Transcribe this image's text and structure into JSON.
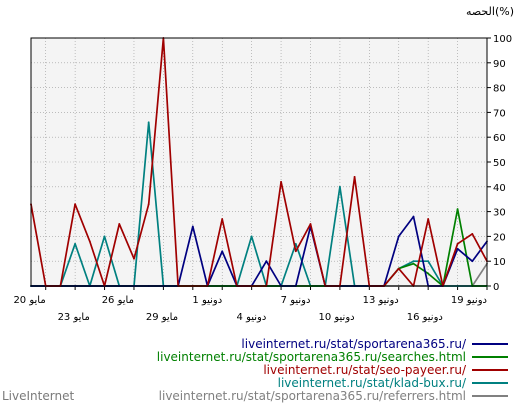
{
  "chart_data": {
    "type": "line",
    "y_unit_label": "الحصه(%)",
    "ylim": [
      0,
      100
    ],
    "y_ticks": [
      0,
      10,
      20,
      30,
      40,
      50,
      60,
      70,
      80,
      90,
      100
    ],
    "grid": true,
    "x_ticks_upper": [
      "19 دونيو",
      "13 دونيو",
      "7 دونيو",
      "1 دونيو",
      "26 مايو",
      "20 مايو"
    ],
    "x_ticks_lower": [
      "16 دونيو",
      "10 دونيو",
      "4 دونيو",
      "29 مايو",
      "23 مايو"
    ],
    "x_order": "newest-left",
    "n_points": 32,
    "series": [
      {
        "name": "liveinternet.ru/stat/sportarena365.ru/",
        "color": "#000080",
        "values": [
          0,
          0,
          0,
          0,
          0,
          0,
          0,
          0,
          0,
          0,
          0,
          24,
          0,
          14,
          0,
          0,
          10,
          0,
          0,
          24,
          0,
          0,
          0,
          0,
          0,
          20,
          28,
          0,
          0,
          15,
          10,
          18
        ]
      },
      {
        "name": "liveinternet.ru/stat/sportarena365.ru/searches.html",
        "color": "#008000",
        "values": [
          0,
          0,
          0,
          0,
          0,
          0,
          0,
          0,
          0,
          0,
          0,
          0,
          0,
          0,
          0,
          0,
          0,
          0,
          0,
          0,
          0,
          0,
          0,
          0,
          0,
          7,
          9,
          5,
          0,
          31,
          0,
          0
        ]
      },
      {
        "name": "liveinternet.ru/stat/seo-payeer.ru/",
        "color": "#a00000",
        "values": [
          33,
          0,
          0,
          33,
          18,
          0,
          25,
          11,
          33,
          100,
          0,
          0,
          0,
          27,
          0,
          0,
          0,
          42,
          14,
          25,
          0,
          0,
          44,
          0,
          0,
          7,
          0,
          27,
          0,
          17,
          21,
          10
        ]
      },
      {
        "name": "liveinternet.ru/stat/klad-bux.ru/",
        "color": "#008080",
        "values": [
          0,
          0,
          0,
          17,
          0,
          20,
          0,
          0,
          66,
          0,
          0,
          0,
          0,
          0,
          0,
          20,
          0,
          0,
          17,
          0,
          0,
          40,
          0,
          0,
          0,
          7,
          10,
          10,
          0,
          0,
          0,
          0
        ]
      },
      {
        "name": "liveinternet.ru/stat/sportarena365.ru/referrers.html",
        "color": "#808080",
        "values": [
          0,
          0,
          0,
          0,
          0,
          0,
          0,
          0,
          0,
          0,
          0,
          0,
          0,
          0,
          0,
          0,
          0,
          0,
          0,
          0,
          0,
          0,
          0,
          0,
          0,
          0,
          0,
          0,
          0,
          0,
          0,
          9
        ]
      }
    ]
  },
  "brand": "LiveInternet"
}
